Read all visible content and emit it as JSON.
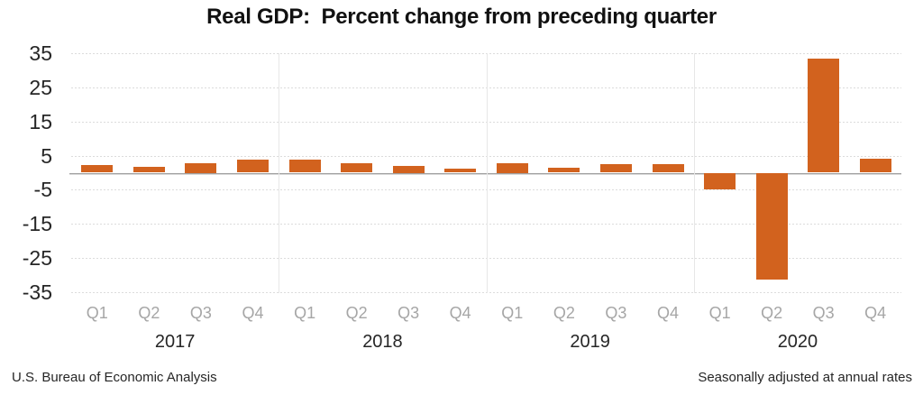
{
  "chart_data": {
    "type": "bar",
    "title": "Real GDP:  Percent change from preceding quarter",
    "ylabel": "",
    "xlabel": "",
    "footer_left": "U.S. Bureau of Economic Analysis",
    "footer_right": "Seasonally adjusted at annual rates",
    "ylim": [
      -35,
      35
    ],
    "yticks": [
      35,
      25,
      15,
      5,
      -5,
      -15,
      -25,
      -35
    ],
    "grid": "dotted-horizontal",
    "legend": "none",
    "bar_color": "#D2621E",
    "grid_color": "#DCDCDC",
    "separator_color": "#E7E7E7",
    "zero_line_color": "#A0A0A0",
    "quarter_label_color": "#A6A6A6",
    "year_label_color": "#262626",
    "groups": [
      {
        "year": "2017",
        "quarters": [
          "Q1",
          "Q2",
          "Q3",
          "Q4"
        ],
        "values": [
          2.3,
          1.7,
          2.9,
          3.9
        ]
      },
      {
        "year": "2018",
        "quarters": [
          "Q1",
          "Q2",
          "Q3",
          "Q4"
        ],
        "values": [
          3.8,
          2.7,
          2.1,
          1.3
        ]
      },
      {
        "year": "2019",
        "quarters": [
          "Q1",
          "Q2",
          "Q3",
          "Q4"
        ],
        "values": [
          2.9,
          1.5,
          2.6,
          2.4
        ]
      },
      {
        "year": "2020",
        "quarters": [
          "Q1",
          "Q2",
          "Q3",
          "Q4"
        ],
        "values": [
          -5.0,
          -31.4,
          33.4,
          4.0
        ]
      }
    ]
  }
}
